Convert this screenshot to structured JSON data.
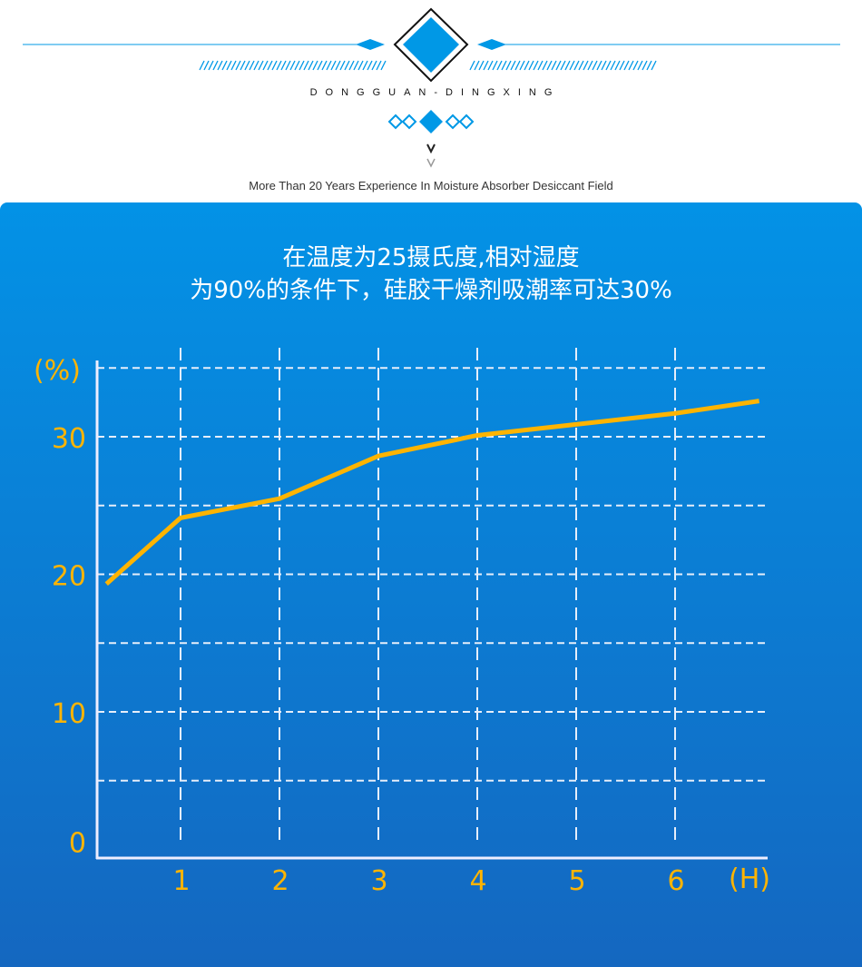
{
  "header": {
    "brand": "DONGGUAN-DINGXING",
    "tagline": "More Than 20 Years Experience In Moisture Absorber Desiccant Field",
    "accent_color": "#0098e6",
    "chevron_icon": "double-chevron-down"
  },
  "panel": {
    "title_line1": "在温度为25摄氏度,相对湿度",
    "title_line2": "为90%的条件下，硅胶干燥剂吸潮率可达30%"
  },
  "chart_data": {
    "type": "line",
    "title": "",
    "xlabel": "(H)",
    "ylabel": "(%)",
    "x_ticks": [
      "1",
      "2",
      "3",
      "4",
      "5",
      "6"
    ],
    "y_ticks": [
      "0",
      "10",
      "20",
      "30"
    ],
    "ylim": [
      0,
      35
    ],
    "xlim": [
      0,
      7
    ],
    "grid": true,
    "line_color": "#ffb400",
    "series": [
      {
        "x": [
          0.25,
          1,
          2,
          3,
          4,
          5,
          6,
          6.85
        ],
        "y": [
          19.3,
          24.1,
          25.5,
          28.6,
          30.1,
          30.9,
          31.7,
          32.6
        ]
      }
    ]
  }
}
